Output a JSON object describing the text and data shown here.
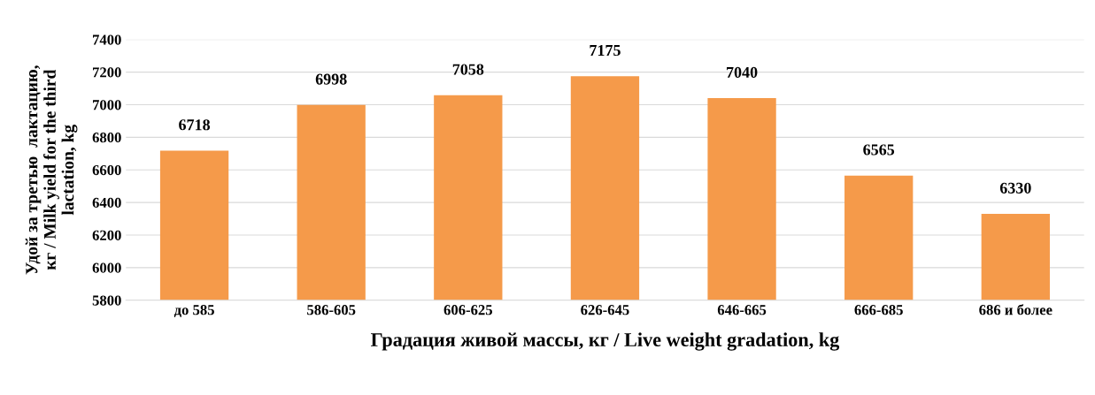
{
  "chart_data": {
    "type": "bar",
    "xlabel": "Градация живой массы, кг / Live weight gradation, kg",
    "ylabel": "Удой за третью  лактацию,\nкг / Milk yield for the third\nlactation, kg",
    "categories": [
      "до 585",
      "586-605",
      "606-625",
      "626-645",
      "646-665",
      "666-685",
      "686 и более"
    ],
    "values": [
      6718,
      6998,
      7058,
      7175,
      7040,
      6565,
      6330
    ],
    "color": "#f59a4a",
    "ylim": [
      5800,
      7400
    ],
    "yticks": [
      5800,
      6000,
      6200,
      6400,
      6600,
      6800,
      7000,
      7200,
      7400
    ],
    "grid": "y",
    "data_labels": true
  }
}
